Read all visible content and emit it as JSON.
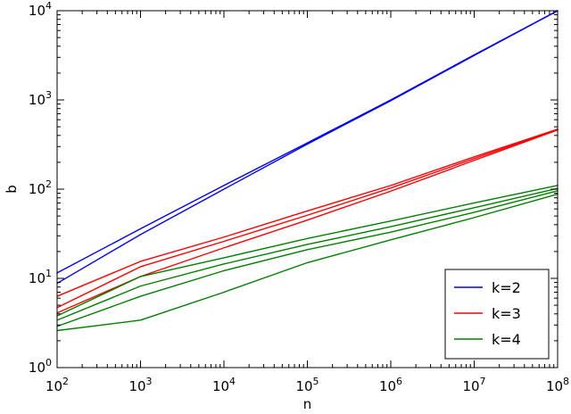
{
  "chart_data": {
    "type": "line",
    "title": "",
    "xlabel": "n",
    "ylabel": "b",
    "xscale": "log",
    "yscale": "log",
    "xlim": [
      100,
      100000000
    ],
    "ylim": [
      1,
      10000
    ],
    "x_ticks": [
      {
        "base": "10",
        "exp": "2"
      },
      {
        "base": "10",
        "exp": "3"
      },
      {
        "base": "10",
        "exp": "4"
      },
      {
        "base": "10",
        "exp": "5"
      },
      {
        "base": "10",
        "exp": "6"
      },
      {
        "base": "10",
        "exp": "7"
      },
      {
        "base": "10",
        "exp": "8"
      }
    ],
    "y_ticks": [
      {
        "base": "10",
        "exp": "0"
      },
      {
        "base": "10",
        "exp": "1"
      },
      {
        "base": "10",
        "exp": "2"
      },
      {
        "base": "10",
        "exp": "3"
      },
      {
        "base": "10",
        "exp": "4"
      }
    ],
    "grid": false,
    "legend_position": "bottom-right",
    "legend": [
      {
        "label": "k=2",
        "color": "#0000ff"
      },
      {
        "label": "k=3",
        "color": "#ff0000"
      },
      {
        "label": "k=4",
        "color": "#008000"
      }
    ],
    "x": [
      100,
      1000,
      10000,
      100000,
      1000000,
      10000000,
      100000000
    ],
    "series": [
      {
        "group": "k=2",
        "color": "#0000ff",
        "values": [
          11.5,
          36,
          110,
          330,
          1000,
          3200,
          10000
        ]
      },
      {
        "group": "k=2",
        "color": "#0000ff",
        "values": [
          8.8,
          31,
          100,
          320,
          980,
          3150,
          10000
        ]
      },
      {
        "group": "k=3",
        "color": "#ff0000",
        "values": [
          6.3,
          15.5,
          29,
          57,
          110,
          230,
          470
        ]
      },
      {
        "group": "k=3",
        "color": "#ff0000",
        "values": [
          4.7,
          13.5,
          26,
          51,
          103,
          220,
          465
        ]
      },
      {
        "group": "k=3",
        "color": "#ff0000",
        "values": [
          4.1,
          10.5,
          22,
          45,
          95,
          210,
          460
        ]
      },
      {
        "group": "k=4",
        "color": "#008000",
        "values": [
          3.8,
          10.5,
          17,
          28,
          44,
          70,
          110
        ]
      },
      {
        "group": "k=4",
        "color": "#008000",
        "values": [
          3.4,
          8.2,
          14.5,
          24,
          38,
          62,
          102
        ]
      },
      {
        "group": "k=4",
        "color": "#008000",
        "values": [
          2.9,
          6.3,
          12.2,
          21,
          33,
          55,
          96
        ]
      },
      {
        "group": "k=4",
        "color": "#008000",
        "values": [
          2.6,
          3.4,
          7.0,
          15,
          27,
          48,
          88
        ]
      }
    ]
  }
}
